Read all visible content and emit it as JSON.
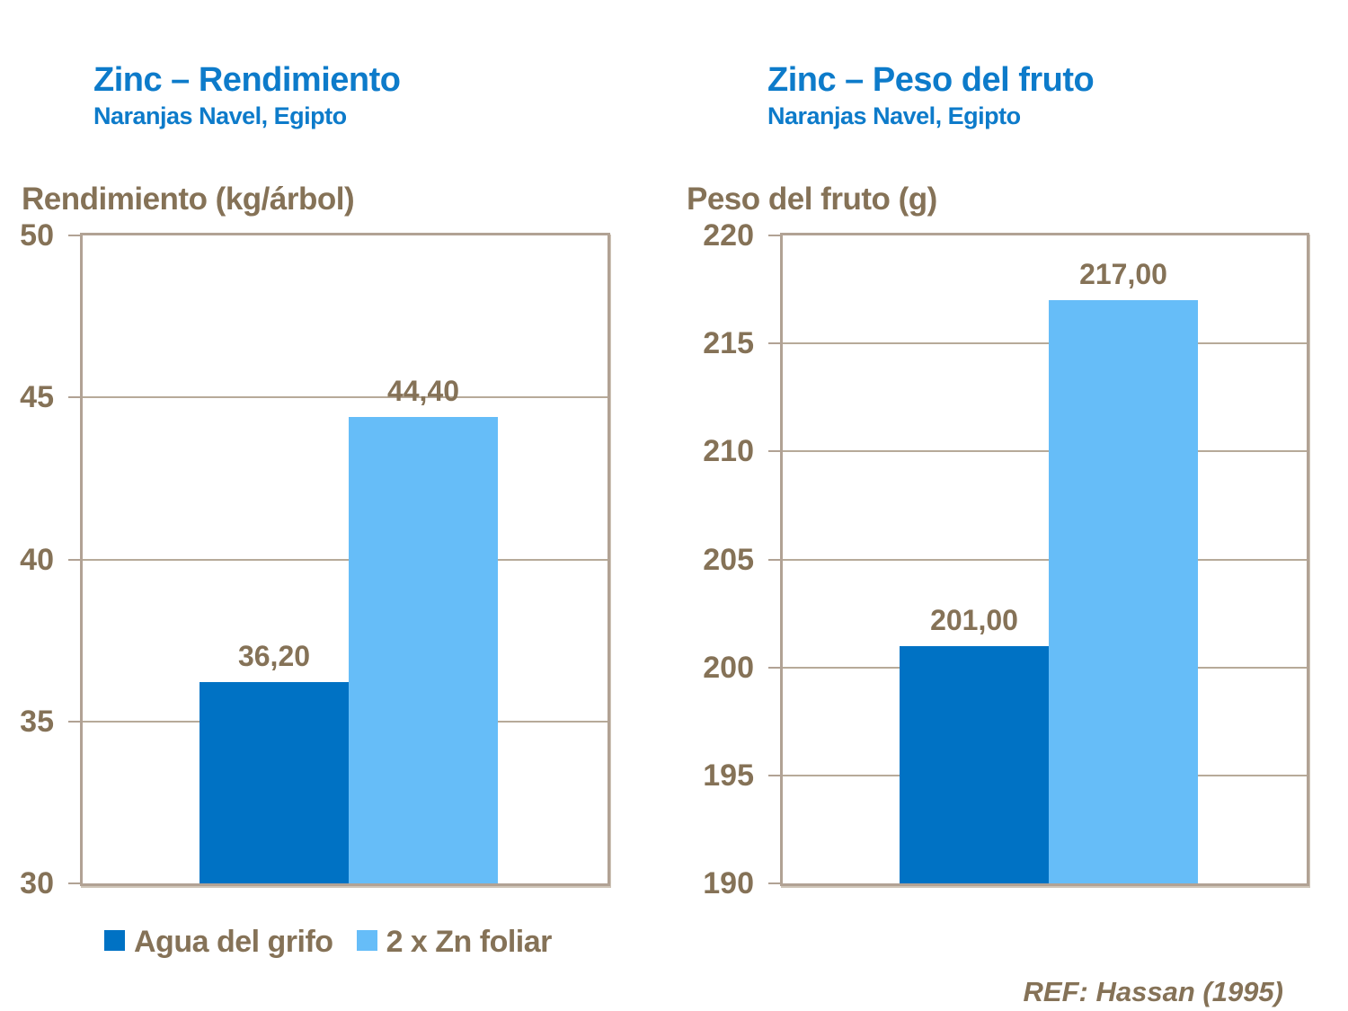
{
  "colors": {
    "title_blue": "#0d7bca",
    "text_brown": "#857257",
    "grid_tan": "#b7aa99",
    "frame_tan": "#b1a294",
    "bar_dark_blue": "#0072c4",
    "bar_light_blue": "#66bdf8",
    "background": "#ffffff"
  },
  "chart_data": [
    {
      "type": "bar",
      "title": "Zinc – Rendimiento",
      "subtitle": "Naranjas Navel, Egipto",
      "ylabel": "Rendimiento (kg/árbol)",
      "xlabel": "",
      "categories": [
        ""
      ],
      "series": [
        {
          "name": "Agua del grifo",
          "values": [
            36.2
          ],
          "color": "#0072c4"
        },
        {
          "name": "2 x Zn foliar",
          "values": [
            44.4
          ],
          "color": "#66bdf8"
        }
      ],
      "bar_labels": [
        "36,20",
        "44,40"
      ],
      "ylim": [
        30,
        50
      ],
      "yticks": [
        30,
        35,
        40,
        45,
        50
      ],
      "grid": true,
      "legend_position": "bottom"
    },
    {
      "type": "bar",
      "title": "Zinc – Peso del fruto",
      "subtitle": "Naranjas Navel, Egipto",
      "ylabel": "Peso del fruto (g)",
      "xlabel": "",
      "categories": [
        ""
      ],
      "series": [
        {
          "name": "Agua del grifo",
          "values": [
            201.0
          ],
          "color": "#0072c4"
        },
        {
          "name": "2 x Zn foliar",
          "values": [
            217.0
          ],
          "color": "#66bdf8"
        }
      ],
      "bar_labels": [
        "201,00",
        "217,00"
      ],
      "ylim": [
        190,
        220
      ],
      "yticks": [
        190,
        195,
        200,
        205,
        210,
        215,
        220
      ],
      "grid": true,
      "legend_position": "none"
    }
  ],
  "legend": {
    "items": [
      {
        "label": "Agua del grifo",
        "color": "#0072c4"
      },
      {
        "label": "2 x Zn foliar",
        "color": "#66bdf8"
      }
    ]
  },
  "ref": "REF: Hassan (1995)"
}
